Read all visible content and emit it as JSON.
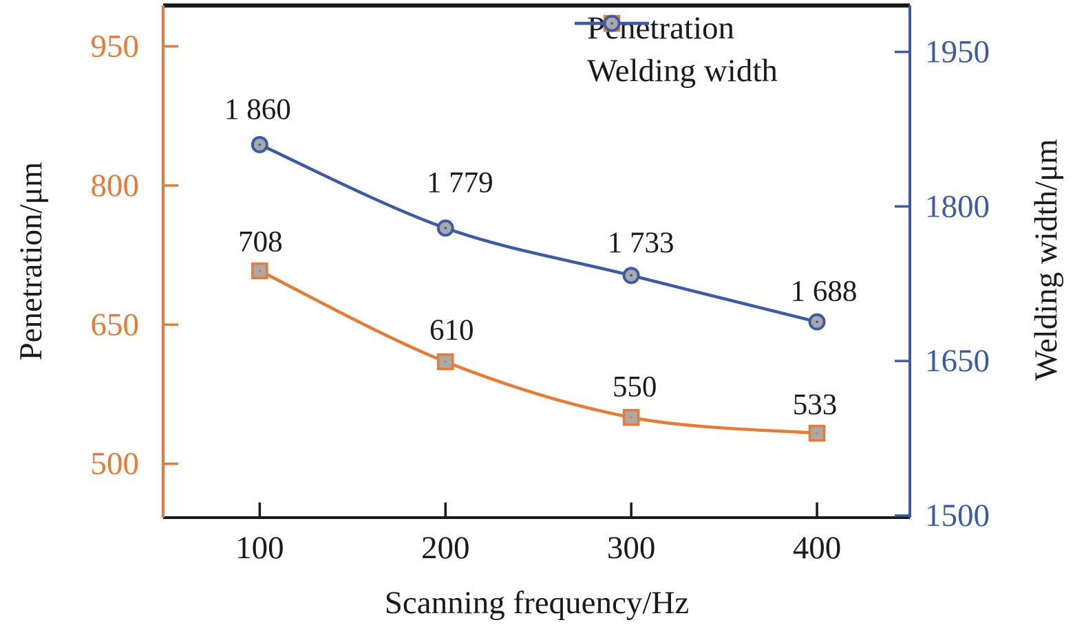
{
  "chart_data": {
    "type": "line",
    "x": [
      100,
      200,
      300,
      400
    ],
    "x_tick_labels": [
      "100",
      "200",
      "300",
      "400"
    ],
    "xlabel": "Scanning frequency/Hz",
    "x_axis": {
      "lim": [
        48,
        450
      ],
      "color": "#1a1a1a"
    },
    "left_axis": {
      "label": "Penetration/μm",
      "ticks": [
        950,
        800,
        650,
        500
      ],
      "tick_labels": [
        "950",
        "800",
        "650",
        "500"
      ],
      "lim": [
        442,
        994
      ],
      "color": "#e87a31"
    },
    "right_axis": {
      "label": "Welding width/μm",
      "ticks": [
        1950,
        1800,
        1650,
        1500
      ],
      "tick_labels": [
        "1950",
        "1800",
        "1650",
        "1500"
      ],
      "lim": [
        1498,
        1995
      ],
      "color": "#3b5ba8"
    },
    "series": [
      {
        "name": "Penetration",
        "axis": "left",
        "marker": "square",
        "color": "#e87a31",
        "marker_fill": "#a9a9a9",
        "values": [
          708,
          610,
          550,
          533
        ],
        "point_labels": [
          "708",
          "610",
          "550",
          "533"
        ],
        "label_offsets": [
          [
            1,
            -42
          ],
          [
            9,
            -46
          ],
          [
            5,
            -44
          ],
          [
            -3,
            -41
          ]
        ]
      },
      {
        "name": "Welding width",
        "axis": "right",
        "marker": "circle",
        "color": "#3b5ba8",
        "marker_fill": "#a9a9a9",
        "values": [
          1860,
          1779,
          1733,
          1688
        ],
        "point_labels": [
          "1 860",
          "1 779",
          "1 733",
          "1 688"
        ],
        "label_offsets": [
          [
            -3,
            -51
          ],
          [
            21,
            -66
          ],
          [
            14,
            -47
          ],
          [
            10,
            -44
          ]
        ]
      }
    ],
    "legend": {
      "position": "top-right"
    },
    "grid": false,
    "background": "#ffffff",
    "text_color": "#1a1a1a"
  }
}
